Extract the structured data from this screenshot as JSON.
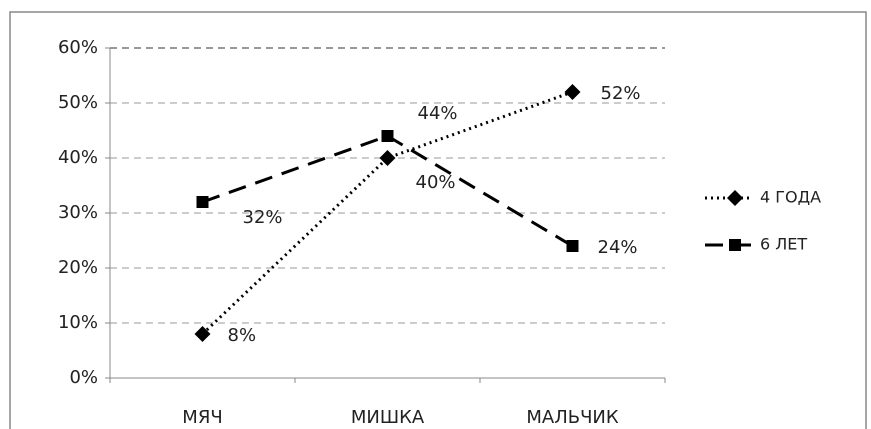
{
  "chart_data": {
    "type": "line",
    "categories": [
      "МЯЧ",
      "МИШКА",
      "МАЛЬЧИК"
    ],
    "series": [
      {
        "name": "4 ГОДА",
        "color": "#000000",
        "dash": "dotted",
        "marker": "diamond",
        "values": [
          8,
          40,
          52
        ],
        "value_labels": [
          "8%",
          "40%",
          "52%"
        ]
      },
      {
        "name": "6 ЛЕТ",
        "color": "#000000",
        "dash": "dashed",
        "marker": "square",
        "values": [
          32,
          44,
          24
        ],
        "value_labels": [
          "32%",
          "44%",
          "24%"
        ]
      }
    ],
    "ylim": [
      0,
      60
    ],
    "yticks": [
      {
        "value": 0,
        "label": "0%"
      },
      {
        "value": 10,
        "label": "10%"
      },
      {
        "value": 20,
        "label": "20%"
      },
      {
        "value": 30,
        "label": "30%"
      },
      {
        "value": 40,
        "label": "40%"
      },
      {
        "value": 50,
        "label": "50%"
      },
      {
        "value": 60,
        "label": "60%"
      }
    ],
    "grid": true,
    "legend": "right"
  }
}
